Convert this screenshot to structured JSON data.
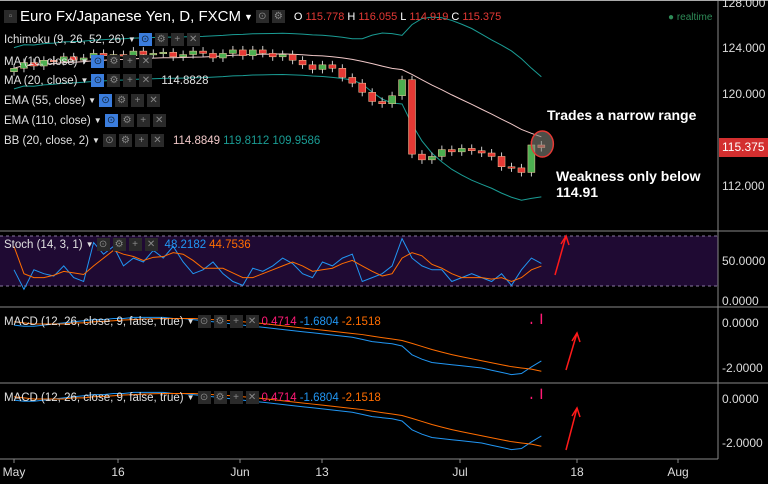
{
  "header": {
    "title": "Euro Fx/Japanese Yen, D, FXCM",
    "o_label": "O",
    "o": "115.778",
    "h_label": "H",
    "h": "116.055",
    "l_label": "L",
    "l": "114.919",
    "c_label": "C",
    "c": "115.375",
    "realtime": "realtime"
  },
  "indicators": [
    {
      "label": "Ichimoku (9, 26, 52, 26)"
    },
    {
      "label": "MA (10, close)"
    },
    {
      "label": "MA (20, close)",
      "value": "114.8828"
    },
    {
      "label": "EMA (55, close)"
    },
    {
      "label": "EMA (110, close)"
    },
    {
      "label": "BB (20, close, 2)",
      "v1": "114.8849",
      "v2": "119.8112",
      "v3": "109.9586"
    }
  ],
  "stoch": {
    "label": "Stoch (14, 3, 1)",
    "k": "48.2182",
    "d": "44.7536"
  },
  "macd": {
    "label": "MACD (12, 26, close, 9, false, true)",
    "hist": "0.4714",
    "macd": "-1.6804",
    "signal": "-2.1518"
  },
  "macd2": {
    "label": "MACD (12, 26, close, 9, false, true)",
    "hist": "0.4714",
    "macd": "-1.6804",
    "signal": "-2.1518"
  },
  "price_axis": [
    "128.000",
    "124.000",
    "120.000",
    "112.000"
  ],
  "last_price": "115.375",
  "stoch_axis": [
    "50.0000",
    "0.0000"
  ],
  "macd_axis": [
    "0.0000",
    "-2.0000"
  ],
  "time_axis": [
    "May",
    "16",
    "Jun",
    "13",
    "Jul",
    "18",
    "Aug"
  ],
  "annotations": {
    "a1": "Trades a narrow range",
    "a2": "Weakness only below",
    "a3": "114.91"
  },
  "colors": {
    "up": "#4caf50",
    "down": "#e53935",
    "bb": "#1a9c94",
    "ma": "#f0c8c8",
    "stoch_k": "#2196f3",
    "stoch_d": "#ff6d00",
    "hist": "#ff1a75",
    "last": "#d32f2f"
  },
  "chart_data": {
    "type": "candlestick",
    "closes": [
      122.3,
      122.8,
      122.5,
      123.0,
      122.9,
      123.3,
      123.0,
      123.2,
      123.6,
      123.4,
      123.5,
      123.4,
      123.8,
      123.5,
      123.6,
      123.7,
      123.3,
      123.5,
      123.8,
      123.6,
      123.2,
      123.6,
      123.9,
      123.4,
      123.9,
      123.6,
      123.3,
      123.5,
      123.0,
      122.6,
      122.2,
      122.6,
      122.3,
      121.5,
      121.0,
      120.2,
      119.4,
      119.2,
      119.9,
      121.3,
      114.8,
      114.3,
      114.6,
      115.2,
      115.0,
      115.3,
      115.1,
      114.9,
      114.6,
      113.7,
      113.6,
      113.2,
      115.6,
      115.375
    ],
    "stoch_k": [
      40,
      15,
      40,
      35,
      32,
      45,
      30,
      25,
      75,
      60,
      70,
      45,
      55,
      50,
      65,
      55,
      70,
      50,
      35,
      40,
      50,
      35,
      25,
      20,
      42,
      38,
      45,
      55,
      48,
      35,
      30,
      50,
      45,
      55,
      60,
      25,
      30,
      35,
      45,
      80,
      55,
      45,
      40,
      40,
      25,
      30,
      35,
      30,
      25,
      35,
      20,
      40,
      55,
      48.2
    ],
    "stoch_d": [
      70,
      35,
      30,
      30,
      33,
      38,
      36,
      34,
      45,
      55,
      65,
      60,
      57,
      52,
      56,
      57,
      62,
      60,
      52,
      42,
      42,
      42,
      36,
      30,
      30,
      35,
      40,
      45,
      50,
      45,
      38,
      40,
      42,
      48,
      52,
      45,
      38,
      32,
      35,
      55,
      62,
      58,
      47,
      42,
      35,
      30,
      30,
      30,
      28,
      30,
      25,
      30,
      40,
      44.8
    ],
    "macd": [
      -0.05,
      -0.1,
      -0.1,
      -0.05,
      0,
      0.05,
      0.1,
      0.15,
      0.2,
      0.2,
      0.25,
      0.25,
      0.3,
      0.3,
      0.3,
      0.3,
      0.25,
      0.25,
      0.2,
      0.15,
      0.1,
      0.05,
      0,
      -0.05,
      -0.1,
      -0.15,
      -0.2,
      -0.25,
      -0.3,
      -0.35,
      -0.4,
      -0.45,
      -0.5,
      -0.55,
      -0.6,
      -0.7,
      -0.8,
      -0.85,
      -0.9,
      -1.0,
      -1.4,
      -1.6,
      -1.75,
      -1.8,
      -1.85,
      -1.9,
      -1.95,
      -2.0,
      -2.1,
      -2.2,
      -2.3,
      -2.25,
      -1.95,
      -1.68
    ],
    "signal": [
      0.1,
      0.05,
      0.0,
      0.0,
      0.0,
      0.0,
      0.05,
      0.05,
      0.1,
      0.12,
      0.15,
      0.18,
      0.2,
      0.22,
      0.24,
      0.25,
      0.25,
      0.25,
      0.25,
      0.23,
      0.2,
      0.17,
      0.14,
      0.1,
      0.06,
      0.02,
      -0.03,
      -0.08,
      -0.13,
      -0.18,
      -0.23,
      -0.28,
      -0.33,
      -0.38,
      -0.43,
      -0.48,
      -0.55,
      -0.62,
      -0.68,
      -0.75,
      -0.88,
      -1.02,
      -1.16,
      -1.28,
      -1.39,
      -1.49,
      -1.58,
      -1.67,
      -1.76,
      -1.85,
      -1.94,
      -2.0,
      -2.05,
      -2.15
    ]
  }
}
